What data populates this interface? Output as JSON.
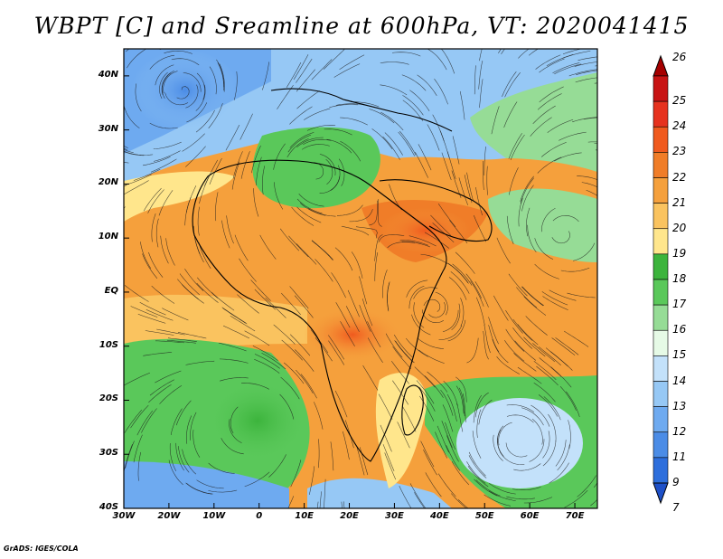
{
  "title": "WBPT [C] and Sreamline at 600hPa, VT: 2020041415",
  "credit": "GrADS: IGES/COLA",
  "map": {
    "lat_labels": [
      "40N",
      "30N",
      "20N",
      "10N",
      "EQ",
      "10S",
      "20S",
      "30S",
      "40S"
    ],
    "lat_values": [
      40,
      30,
      20,
      10,
      0,
      -10,
      -20,
      -30,
      -40
    ],
    "lon_labels": [
      "30W",
      "20W",
      "10W",
      "0",
      "10E",
      "20E",
      "30E",
      "40E",
      "50E",
      "60E",
      "70E"
    ],
    "lon_values": [
      -30,
      -20,
      -10,
      0,
      10,
      20,
      30,
      40,
      50,
      60,
      70
    ],
    "lon_range": [
      -30,
      75
    ],
    "lat_range": [
      -40,
      45
    ]
  },
  "colorbar": {
    "levels": [
      "26",
      "25",
      "24",
      "23",
      "22",
      "21",
      "20",
      "19",
      "18",
      "17",
      "16",
      "15",
      "14",
      "13",
      "12",
      "11",
      "9",
      "7"
    ],
    "colors": [
      "#a50000",
      "#c81414",
      "#e6321e",
      "#f05a1e",
      "#f07d28",
      "#f5a03c",
      "#fac35f",
      "#ffe68c",
      "#3cb43c",
      "#5ac85a",
      "#96dc96",
      "#e6fae6",
      "#c3e1fa",
      "#96c8f5",
      "#6eaaf0",
      "#4b8ce6",
      "#2d6edc",
      "#1e50c8"
    ]
  }
}
